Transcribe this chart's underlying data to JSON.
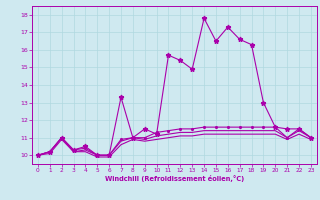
{
  "xlabel": "Windchill (Refroidissement éolien,°C)",
  "xlim": [
    -0.5,
    23.5
  ],
  "ylim": [
    9.5,
    18.5
  ],
  "yticks": [
    10,
    11,
    12,
    13,
    14,
    15,
    16,
    17,
    18
  ],
  "xticks": [
    0,
    1,
    2,
    3,
    4,
    5,
    6,
    7,
    8,
    9,
    10,
    11,
    12,
    13,
    14,
    15,
    16,
    17,
    18,
    19,
    20,
    21,
    22,
    23
  ],
  "bg_color": "#cfe9f0",
  "line_color": "#aa00aa",
  "grid_color": "#b0d8e0",
  "lines": [
    [
      10.0,
      10.2,
      11.0,
      10.3,
      10.5,
      10.0,
      10.0,
      13.3,
      11.0,
      11.5,
      11.2,
      15.7,
      15.4,
      14.9,
      17.8,
      16.5,
      17.3,
      16.6,
      16.3,
      13.0,
      11.6,
      11.5,
      11.5,
      11.0
    ],
    [
      10.0,
      10.2,
      11.0,
      10.3,
      10.4,
      10.0,
      10.0,
      10.9,
      11.0,
      11.0,
      11.3,
      11.4,
      11.5,
      11.5,
      11.6,
      11.6,
      11.6,
      11.6,
      11.6,
      11.6,
      11.6,
      11.0,
      11.5,
      11.0
    ],
    [
      10.0,
      10.2,
      11.0,
      10.2,
      10.3,
      10.0,
      10.0,
      10.8,
      11.0,
      10.9,
      11.1,
      11.2,
      11.3,
      11.3,
      11.4,
      11.4,
      11.4,
      11.4,
      11.4,
      11.4,
      11.4,
      11.0,
      11.4,
      11.0
    ],
    [
      10.0,
      10.1,
      10.9,
      10.2,
      10.2,
      9.9,
      9.9,
      10.6,
      10.9,
      10.8,
      10.9,
      11.0,
      11.1,
      11.1,
      11.2,
      11.2,
      11.2,
      11.2,
      11.2,
      11.2,
      11.2,
      10.9,
      11.2,
      10.9
    ]
  ],
  "line_styles": [
    {
      "marker": "*",
      "markersize": 3.5,
      "linewidth": 0.8
    },
    {
      "marker": ".",
      "markersize": 2.5,
      "linewidth": 0.8
    },
    {
      "marker": null,
      "markersize": 0,
      "linewidth": 0.8
    },
    {
      "marker": null,
      "markersize": 0,
      "linewidth": 0.8
    }
  ]
}
